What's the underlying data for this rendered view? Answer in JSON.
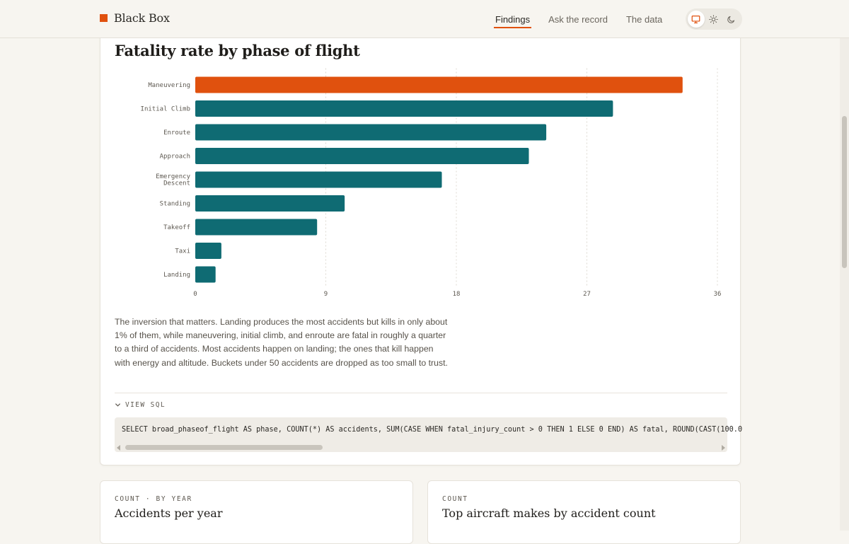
{
  "header": {
    "brand": "Black Box",
    "nav": [
      {
        "label": "Findings",
        "active": true
      },
      {
        "label": "Ask the record",
        "active": false
      },
      {
        "label": "The data",
        "active": false
      }
    ],
    "theme_options": [
      {
        "icon": "monitor-icon",
        "active": true
      },
      {
        "icon": "sun-icon",
        "active": false
      },
      {
        "icon": "moon-icon",
        "active": false
      }
    ]
  },
  "main_card": {
    "title": "Fatality rate by phase of flight",
    "caption": "The inversion that matters. Landing produces the most accidents but kills in only about 1% of them, while maneuvering, initial climb, and enroute are fatal in roughly a quarter to a third of accidents. Most accidents happen on landing; the ones that kill happen with energy and altitude. Buckets under 50 accidents are dropped as too small to trust.",
    "view_sql_label": "VIEW SQL",
    "sql": "SELECT broad_phaseof_flight AS phase, COUNT(*) AS accidents, SUM(CASE WHEN fatal_injury_count > 0 THEN 1 ELSE 0 END) AS fatal, ROUND(CAST(100.0"
  },
  "chart_data": {
    "type": "bar",
    "orientation": "horizontal",
    "categories": [
      "Maneuvering",
      "Initial Climb",
      "Enroute",
      "Approach",
      "Emergency Descent",
      "Standing",
      "Takeoff",
      "Taxi",
      "Landing"
    ],
    "values": [
      33.6,
      28.8,
      24.2,
      23.0,
      17.0,
      10.3,
      8.4,
      1.8,
      1.4
    ],
    "highlight_category": "Maneuvering",
    "xlim": [
      0,
      36
    ],
    "xticks": [
      0,
      9,
      18,
      27,
      36
    ],
    "grid": "vertical-dotted",
    "colors": {
      "highlight": "#e0510e",
      "default": "#0f6b73",
      "grid": "#dedad2"
    }
  },
  "bottom_cards": [
    {
      "eyebrow": "COUNT · BY YEAR",
      "title": "Accidents per year"
    },
    {
      "eyebrow": "COUNT",
      "title": "Top aircraft makes by accident count"
    }
  ],
  "colors": {
    "accent": "#e0510e",
    "teal": "#0f6b73",
    "background": "#f7f5f0"
  }
}
